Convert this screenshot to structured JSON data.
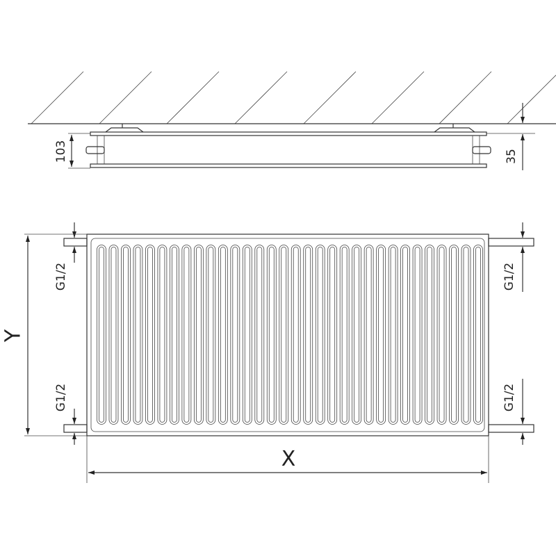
{
  "side_view": {
    "depth_label": "103",
    "offset_label": "35"
  },
  "front_view": {
    "height_label": "Y",
    "width_label": "X",
    "connection_labels": [
      "G1/2",
      "G1/2",
      "G1/2",
      "G1/2"
    ],
    "fin_count": 32
  },
  "line_color": "#333333"
}
